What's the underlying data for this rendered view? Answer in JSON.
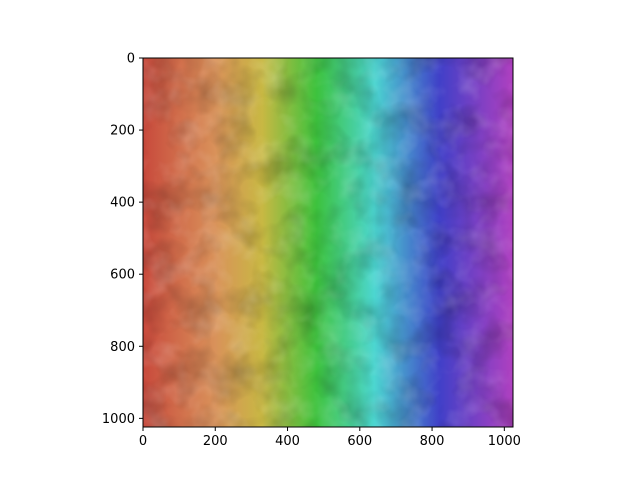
{
  "chart_data": {
    "type": "heatmap",
    "title": "",
    "xlabel": "",
    "ylabel": "",
    "xlim": [
      0,
      1024
    ],
    "ylim": [
      1024,
      0
    ],
    "x_ticks": [
      "0",
      "200",
      "400",
      "600",
      "800",
      "1000"
    ],
    "y_ticks": [
      "0",
      "200",
      "400",
      "600",
      "800",
      "1000"
    ],
    "x_tick_values": [
      0,
      200,
      400,
      600,
      800,
      1000
    ],
    "y_tick_values": [
      0,
      200,
      400,
      600,
      800,
      1000
    ],
    "image_size": [
      1024,
      1024
    ],
    "colormap": "rainbow hue gradient left-to-right with cloud-like brightness texture",
    "gradient_stops": [
      {
        "x": 0,
        "color": "#c8493c"
      },
      {
        "x": 200,
        "color": "#d9925a"
      },
      {
        "x": 330,
        "color": "#c8b843"
      },
      {
        "x": 480,
        "color": "#3dc23d"
      },
      {
        "x": 640,
        "color": "#4cd6d0"
      },
      {
        "x": 820,
        "color": "#4040c8"
      },
      {
        "x": 1024,
        "color": "#b040c0"
      }
    ],
    "grid": false,
    "legend": "none"
  }
}
